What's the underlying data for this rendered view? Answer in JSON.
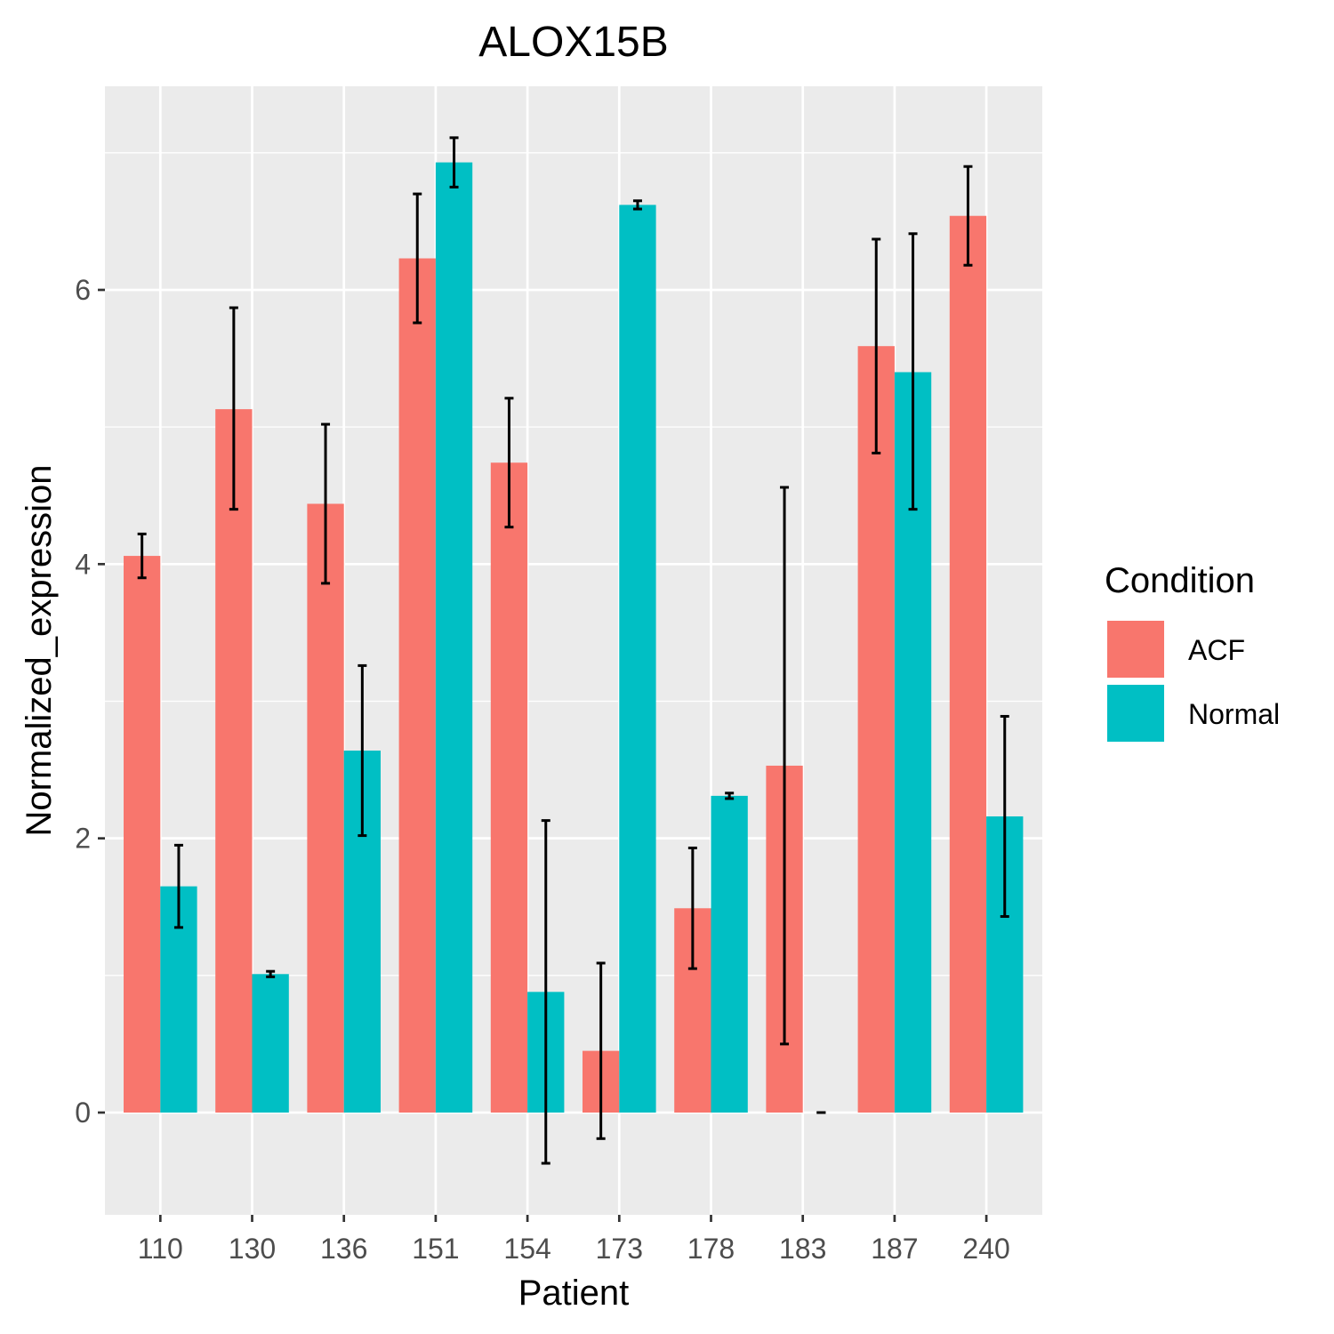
{
  "chart_data": {
    "type": "bar",
    "title": "ALOX15B",
    "xlabel": "Patient",
    "ylabel": "Normalized_expression",
    "categories": [
      "110",
      "130",
      "136",
      "151",
      "154",
      "173",
      "178",
      "183",
      "187",
      "240"
    ],
    "series": [
      {
        "name": "ACF",
        "color": "#F8766D",
        "values": [
          4.06,
          5.13,
          4.44,
          6.23,
          4.74,
          0.45,
          1.49,
          2.53,
          5.59,
          6.54
        ],
        "error_low": [
          3.9,
          4.4,
          3.86,
          5.76,
          4.27,
          -0.19,
          1.05,
          0.5,
          4.81,
          6.18
        ],
        "error_high": [
          4.22,
          5.87,
          5.02,
          6.7,
          5.21,
          1.09,
          1.93,
          4.56,
          6.37,
          6.9
        ]
      },
      {
        "name": "Normal",
        "color": "#00BFC4",
        "values": [
          1.65,
          1.01,
          2.64,
          6.93,
          0.88,
          6.62,
          2.31,
          0.0,
          5.4,
          2.16
        ],
        "error_low": [
          1.35,
          0.99,
          2.02,
          6.75,
          -0.37,
          6.59,
          2.29,
          0.0,
          4.4,
          1.43
        ],
        "error_high": [
          1.95,
          1.03,
          3.26,
          7.11,
          2.13,
          6.65,
          2.33,
          0.0,
          6.41,
          2.89
        ]
      }
    ],
    "yticks": [
      0,
      2,
      4,
      6
    ],
    "ylim": [
      -0.72,
      7.6
    ],
    "grid": true,
    "legend": {
      "title": "Condition",
      "position": "right",
      "entries": [
        "ACF",
        "Normal"
      ]
    }
  }
}
